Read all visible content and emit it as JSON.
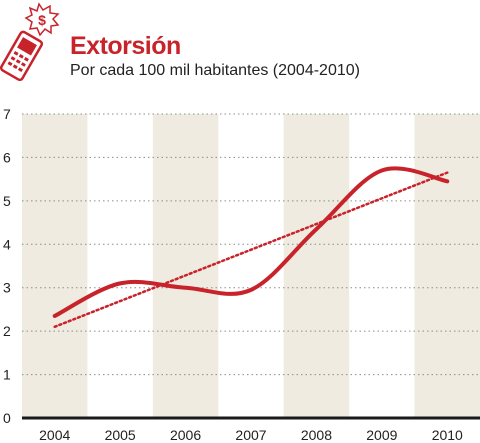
{
  "header": {
    "title": "Extorsión",
    "subtitle": "Por cada 100 mil habitantes (2004-2010)",
    "icon": "phone-extortion-icon"
  },
  "colors": {
    "line": "#c8232a",
    "trend": "#c8232a",
    "band": "#efebe0",
    "grid": "#8c8c8c",
    "axis": "#1a1a1a"
  },
  "chart_data": {
    "type": "line",
    "title": "Extorsión",
    "subtitle": "Por cada 100 mil habitantes (2004-2010)",
    "xlabel": "",
    "ylabel": "",
    "categories": [
      "2004",
      "2005",
      "2006",
      "2007",
      "2008",
      "2009",
      "2010"
    ],
    "ylim": [
      0,
      7
    ],
    "yticks": [
      "0",
      "1",
      "2",
      "3",
      "4",
      "5",
      "6",
      "7"
    ],
    "grid": "horizontal dotted",
    "legend": "none",
    "series": [
      {
        "values": [
          2.35,
          3.1,
          3.0,
          2.95,
          4.35,
          5.7,
          5.45
        ]
      }
    ],
    "trendline": {
      "style": "dotted",
      "from": 2.1,
      "to": 5.65
    }
  }
}
